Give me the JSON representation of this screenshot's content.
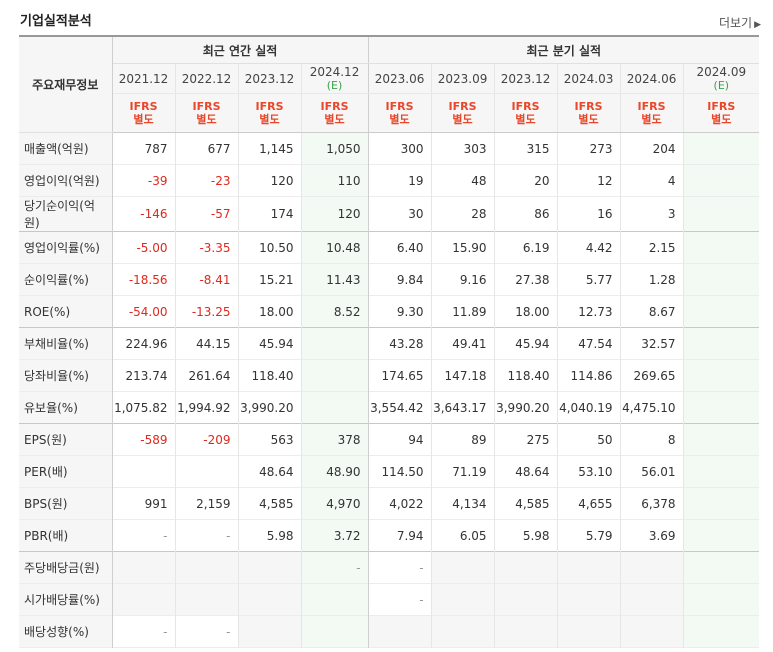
{
  "header": {
    "title": "기업실적분석",
    "more": "더보기"
  },
  "groups": {
    "annual": "최근 연간 실적",
    "quarter": "최근 분기 실적"
  },
  "label_header": "주요재무정보",
  "periods": [
    {
      "label": "2021.12",
      "est": ""
    },
    {
      "label": "2022.12",
      "est": ""
    },
    {
      "label": "2023.12",
      "est": ""
    },
    {
      "label": "2024.12",
      "est": "(E)"
    },
    {
      "label": "2023.06",
      "est": ""
    },
    {
      "label": "2023.09",
      "est": ""
    },
    {
      "label": "2023.12",
      "est": ""
    },
    {
      "label": "2024.03",
      "est": ""
    },
    {
      "label": "2024.06",
      "est": ""
    },
    {
      "label": "2024.09",
      "est": "(E)"
    }
  ],
  "ifrs": {
    "line1": "IFRS",
    "line2": "별도"
  },
  "rows": [
    {
      "label": "매출액(억원)",
      "values": [
        "787",
        "677",
        "1,145",
        "1,050",
        "300",
        "303",
        "315",
        "273",
        "204",
        ""
      ]
    },
    {
      "label": "영업이익(억원)",
      "values": [
        "-39",
        "-23",
        "120",
        "110",
        "19",
        "48",
        "20",
        "12",
        "4",
        ""
      ]
    },
    {
      "label": "당기순이익(억원)",
      "values": [
        "-146",
        "-57",
        "174",
        "120",
        "30",
        "28",
        "86",
        "16",
        "3",
        ""
      ]
    },
    {
      "label": "영업이익률(%)",
      "values": [
        "-5.00",
        "-3.35",
        "10.50",
        "10.48",
        "6.40",
        "15.90",
        "6.19",
        "4.42",
        "2.15",
        ""
      ]
    },
    {
      "label": "순이익률(%)",
      "values": [
        "-18.56",
        "-8.41",
        "15.21",
        "11.43",
        "9.84",
        "9.16",
        "27.38",
        "5.77",
        "1.28",
        ""
      ]
    },
    {
      "label": "ROE(%)",
      "values": [
        "-54.00",
        "-13.25",
        "18.00",
        "8.52",
        "9.30",
        "11.89",
        "18.00",
        "12.73",
        "8.67",
        ""
      ]
    },
    {
      "label": "부채비율(%)",
      "values": [
        "224.96",
        "44.15",
        "45.94",
        "",
        "43.28",
        "49.41",
        "45.94",
        "47.54",
        "32.57",
        ""
      ]
    },
    {
      "label": "당좌비율(%)",
      "values": [
        "213.74",
        "261.64",
        "118.40",
        "",
        "174.65",
        "147.18",
        "118.40",
        "114.86",
        "269.65",
        ""
      ]
    },
    {
      "label": "유보율(%)",
      "values": [
        "1,075.82",
        "1,994.92",
        "3,990.20",
        "",
        "3,554.42",
        "3,643.17",
        "3,990.20",
        "4,040.19",
        "4,475.10",
        ""
      ]
    },
    {
      "label": "EPS(원)",
      "values": [
        "-589",
        "-209",
        "563",
        "378",
        "94",
        "89",
        "275",
        "50",
        "8",
        ""
      ]
    },
    {
      "label": "PER(배)",
      "values": [
        "",
        "",
        "48.64",
        "48.90",
        "114.50",
        "71.19",
        "48.64",
        "53.10",
        "56.01",
        ""
      ]
    },
    {
      "label": "BPS(원)",
      "values": [
        "991",
        "2,159",
        "4,585",
        "4,970",
        "4,022",
        "4,134",
        "4,585",
        "4,655",
        "6,378",
        ""
      ]
    },
    {
      "label": "PBR(배)",
      "values": [
        "-",
        "-",
        "5.98",
        "3.72",
        "7.94",
        "6.05",
        "5.98",
        "5.79",
        "3.69",
        ""
      ]
    },
    {
      "label": "주당배당금(원)",
      "values": [
        "",
        "",
        "",
        "-",
        "-",
        "",
        "",
        "",
        "",
        ""
      ]
    },
    {
      "label": "시가배당률(%)",
      "values": [
        "",
        "",
        "",
        "",
        "-",
        "",
        "",
        "",
        "",
        ""
      ]
    },
    {
      "label": "배당성향(%)",
      "values": [
        "-",
        "-",
        "",
        "",
        "",
        "",
        "",
        "",
        "",
        ""
      ]
    }
  ]
}
